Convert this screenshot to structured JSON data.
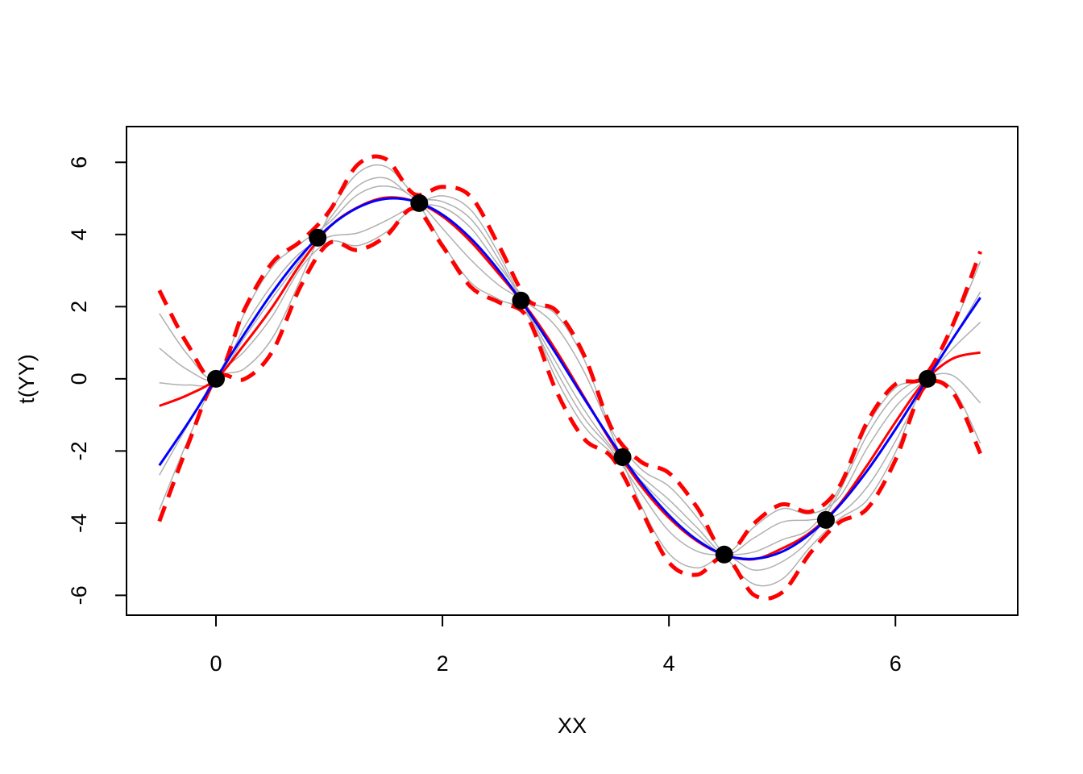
{
  "chart_data": {
    "type": "line",
    "xlabel": "XX",
    "ylabel": "t(YY)",
    "xlim": [
      -0.79,
      7.08
    ],
    "ylim": [
      -6.55,
      6.99
    ],
    "xticks": [
      0,
      2,
      4,
      6
    ],
    "yticks": [
      -6,
      -4,
      -2,
      0,
      2,
      4,
      6
    ],
    "x": [
      -0.5,
      -0.25,
      0,
      0.25,
      0.5,
      0.75,
      1.0,
      1.25,
      1.5,
      1.75,
      2.0,
      2.25,
      2.5,
      2.75,
      3.0,
      3.25,
      3.5,
      3.75,
      4.0,
      4.25,
      4.5,
      4.75,
      5.0,
      5.25,
      5.5,
      5.75,
      6.0,
      6.25,
      6.5,
      6.75
    ],
    "series": [
      {
        "color": "#b0b0b0",
        "linestyle": "solid",
        "linewidth": 1.5,
        "values": [
          1.81,
          0.67,
          0,
          1.43,
          2.62,
          3.51,
          3.94,
          4.04,
          4.38,
          4.8,
          5.07,
          4.68,
          3.45,
          1.87,
          0.47,
          -0.85,
          -1.92,
          -2.69,
          -3.35,
          -4.13,
          -4.86,
          -4.41,
          -3.97,
          -3.91,
          -3.75,
          -3.0,
          -1.73,
          -0.18,
          1.36,
          3.25
        ]
      },
      {
        "color": "#b0b0b0",
        "linestyle": "solid",
        "linewidth": 1.5,
        "values": [
          -2.67,
          -1.29,
          0,
          0.28,
          1.14,
          2.77,
          4.55,
          5.69,
          5.88,
          5.08,
          4.17,
          3.3,
          2.59,
          2.1,
          1.46,
          0.2,
          -1.57,
          -3.48,
          -4.84,
          -5.24,
          -4.91,
          -5.3,
          -5.07,
          -4.42,
          -3.16,
          -1.56,
          -0.46,
          0.01,
          0.1,
          -0.67
        ]
      },
      {
        "color": "#b0b0b0",
        "linestyle": "solid",
        "linewidth": 1.5,
        "values": [
          -0.11,
          -0.17,
          0,
          1.81,
          3.11,
          3.76,
          4.33,
          5.1,
          5.34,
          4.98,
          3.76,
          2.67,
          2.2,
          1.77,
          0.03,
          -1.31,
          -2.07,
          -2.82,
          -3.6,
          -4.31,
          -4.84,
          -4.11,
          -3.6,
          -3.74,
          -3.3,
          -1.92,
          -0.78,
          -0.04,
          0.82,
          1.57
        ]
      },
      {
        "color": "#b0b0b0",
        "linestyle": "solid",
        "linewidth": 1.5,
        "values": [
          -3.63,
          -1.71,
          0,
          0.76,
          1.75,
          3.08,
          3.8,
          3.69,
          4.06,
          4.74,
          4.75,
          4.18,
          3.13,
          2.18,
          1.79,
          0.54,
          -1.45,
          -2.49,
          -2.98,
          -3.85,
          -4.93,
          -5.69,
          -5.55,
          -4.65,
          -3.89,
          -3.36,
          -2.04,
          -0.22,
          -0.26,
          -1.79
        ]
      },
      {
        "color": "#b0b0b0",
        "linestyle": "solid",
        "linewidth": 1.5,
        "values": [
          0.85,
          0.25,
          0,
          1.14,
          2.25,
          3.32,
          4.42,
          5.34,
          5.56,
          5.02,
          4.91,
          4.43,
          3.29,
          1.82,
          0.25,
          -1.08,
          -2.0,
          -3.15,
          -4.22,
          -4.78,
          -4.88,
          -4.8,
          -4.46,
          -4.14,
          -3.06,
          -1.32,
          -0.25,
          0.04,
          1.09,
          2.41
        ]
      },
      {
        "color": "#ff0000",
        "linestyle": "dashed",
        "linewidth": 5,
        "values": [
          2.45,
          0.95,
          0,
          1.91,
          3.23,
          3.82,
          4.64,
          5.93,
          6.09,
          5.12,
          5.32,
          5.05,
          3.68,
          2.2,
          1.9,
          0.66,
          -1.41,
          -2.29,
          -2.61,
          -3.57,
          -4.84,
          -4.01,
          -3.48,
          -3.68,
          -3.01,
          -1.2,
          -0.15,
          0.05,
          1.45,
          3.53
        ]
      },
      {
        "color": "#ff0000",
        "linestyle": "dashed",
        "linewidth": 5,
        "values": [
          -3.95,
          -1.85,
          0,
          -0.01,
          0.77,
          2.58,
          3.76,
          3.57,
          3.95,
          4.72,
          3.68,
          2.55,
          2.12,
          1.7,
          -0.3,
          -1.66,
          -2.19,
          -3.61,
          -5.09,
          -5.43,
          -4.94,
          -5.99,
          -5.92,
          -4.82,
          -3.99,
          -3.6,
          -2.25,
          -0.25,
          -0.35,
          -2.07
        ]
      },
      {
        "color": "#ff0000",
        "linestyle": "solid",
        "linewidth": 3,
        "values": [
          -0.75,
          -0.45,
          0,
          0.95,
          2.0,
          3.2,
          4.2,
          4.75,
          5.02,
          4.92,
          4.5,
          3.8,
          2.9,
          1.95,
          0.8,
          -0.5,
          -1.8,
          -2.95,
          -3.85,
          -4.5,
          -4.89,
          -5.0,
          -4.7,
          -4.25,
          -3.5,
          -2.4,
          -1.2,
          -0.1,
          0.55,
          0.73
        ]
      },
      {
        "color": "#0000ff",
        "linestyle": "solid",
        "linewidth": 3,
        "values": [
          -2.4,
          -1.24,
          0,
          1.24,
          2.4,
          3.41,
          4.21,
          4.74,
          4.99,
          4.92,
          4.55,
          3.89,
          2.99,
          1.91,
          0.71,
          -0.54,
          -1.75,
          -2.86,
          -3.78,
          -4.47,
          -4.89,
          -4.99,
          -4.79,
          -4.29,
          -3.53,
          -2.55,
          -1.4,
          -0.16,
          1.08,
          2.25
        ]
      }
    ],
    "points": {
      "color": "#000000",
      "x": [
        0,
        0.898,
        1.795,
        2.693,
        3.59,
        4.488,
        5.386,
        6.283
      ],
      "y": [
        0,
        3.91,
        4.87,
        2.17,
        -2.17,
        -4.87,
        -3.91,
        0
      ]
    }
  }
}
